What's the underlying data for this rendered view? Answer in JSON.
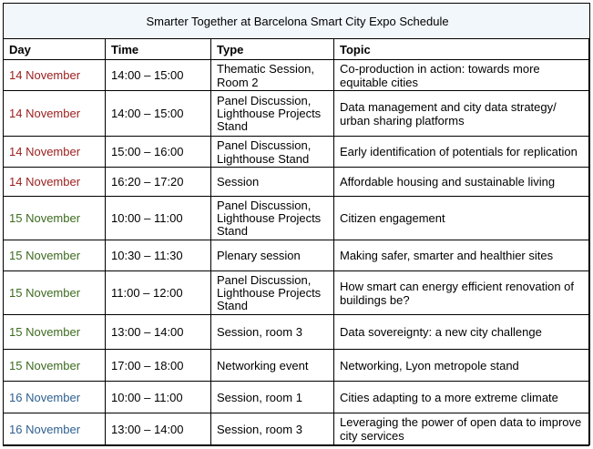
{
  "title": "Smarter Together at Barcelona Smart City Expo Schedule",
  "headers": [
    "Day",
    "Time",
    "Type",
    "Topic"
  ],
  "colors": {
    "nov14": "#9b1c1c",
    "nov15": "#3d6b1f",
    "nov16": "#2e5f8e",
    "caption_bg": "#f2f7fc"
  },
  "rows": [
    {
      "day": "14 November",
      "time": "14:00 – 15:00",
      "type": "Thematic Session, Room 2",
      "topic": "Co-production in action: towards more equitable cities"
    },
    {
      "day": "14 November",
      "time": "14:00 – 15:00",
      "type": "Panel Discussion, Lighthouse Projects Stand",
      "topic": "Data management and city data strategy/ urban sharing platforms"
    },
    {
      "day": "14 November",
      "time": "15:00 – 16:00",
      "type": "Panel Discussion, Lighthouse Stand",
      "topic": "Early identification of potentials for replication"
    },
    {
      "day": "14 November",
      "time": "16:20 – 17:20",
      "type": "Session",
      "topic": "Affordable housing and sustainable living"
    },
    {
      "day": "15 November",
      "time": "10:00 – 11:00",
      "type": "Panel Discussion, Lighthouse Projects Stand",
      "topic": "Citizen engagement"
    },
    {
      "day": "15 November",
      "time": "10:30 – 11:30",
      "type": "Plenary session",
      "topic": "Making safer, smarter and healthier sites"
    },
    {
      "day": "15 November",
      "time": "11:00 – 12:00",
      "type": "Panel Discussion, Lighthouse Projects Stand",
      "topic": "How smart can energy efficient renovation of buildings be?"
    },
    {
      "day": "15 November",
      "time": "13:00 – 14:00",
      "type": "Session, room 3",
      "topic": "Data sovereignty: a new city challenge"
    },
    {
      "day": "15 November",
      "time": "17:00 – 18:00",
      "type": "Networking event",
      "topic": "Networking, Lyon metropole stand"
    },
    {
      "day": "16 November",
      "time": "10:00 – 11:00",
      "type": "Session, room 1",
      "topic": "Cities adapting to a more extreme climate"
    },
    {
      "day": "16 November",
      "time": "13:00 – 14:00",
      "type": "Session, room 3",
      "topic": "Leveraging the power of open data to improve city services"
    }
  ]
}
